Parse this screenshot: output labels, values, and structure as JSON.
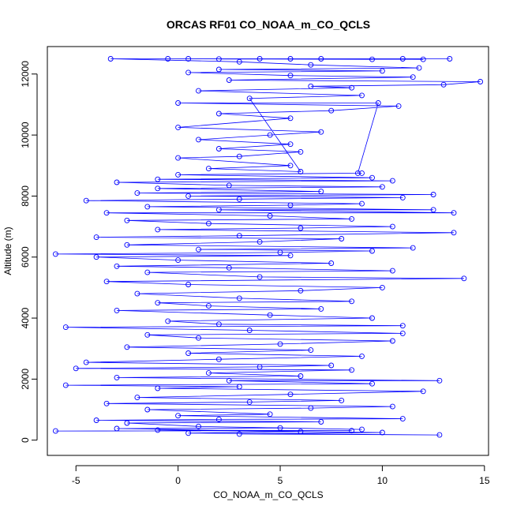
{
  "chart_data": {
    "type": "line",
    "title": "ORCAS RF01 CO_NOAA_m_CO_QCLS",
    "xlabel": "CO_NOAA_m_CO_QCLS",
    "ylabel": "Altitude (m)",
    "xlim": [
      -6.4,
      15.2
    ],
    "ylim": [
      -500,
      12900
    ],
    "x_ticks": [
      -5,
      0,
      5,
      10,
      15
    ],
    "y_ticks": [
      0,
      2000,
      4000,
      6000,
      8000,
      10000,
      12000
    ],
    "grid": false,
    "series": [
      {
        "color": "#0000ff",
        "marker": "open-circle",
        "points": [
          [
            -6.0,
            300
          ],
          [
            8.5,
            310
          ],
          [
            -1.0,
            330
          ],
          [
            10.0,
            250
          ],
          [
            3.0,
            200
          ],
          [
            12.8,
            170
          ],
          [
            0.5,
            230
          ],
          [
            6.0,
            280
          ],
          [
            -3.0,
            380
          ],
          [
            5.0,
            400
          ],
          [
            9.0,
            350
          ],
          [
            1.0,
            450
          ],
          [
            -2.5,
            560
          ],
          [
            7.0,
            600
          ],
          [
            -4.0,
            650
          ],
          [
            2.0,
            680
          ],
          [
            11.0,
            700
          ],
          [
            0.0,
            800
          ],
          [
            4.5,
            850
          ],
          [
            -1.5,
            1000
          ],
          [
            6.5,
            1050
          ],
          [
            10.5,
            1100
          ],
          [
            -3.5,
            1200
          ],
          [
            3.5,
            1250
          ],
          [
            8.0,
            1300
          ],
          [
            -2.0,
            1400
          ],
          [
            5.5,
            1500
          ],
          [
            12.0,
            1600
          ],
          [
            -1.0,
            1700
          ],
          [
            3.0,
            1750
          ],
          [
            -5.5,
            1800
          ],
          [
            9.5,
            1850
          ],
          [
            2.5,
            1950
          ],
          [
            12.8,
            1950
          ],
          [
            -3.0,
            2050
          ],
          [
            6.0,
            2100
          ],
          [
            1.5,
            2200
          ],
          [
            8.5,
            2300
          ],
          [
            -5.0,
            2350
          ],
          [
            4.0,
            2400
          ],
          [
            7.5,
            2450
          ],
          [
            -4.5,
            2550
          ],
          [
            2.0,
            2650
          ],
          [
            9.0,
            2750
          ],
          [
            0.5,
            2850
          ],
          [
            6.5,
            2950
          ],
          [
            -2.5,
            3050
          ],
          [
            5.0,
            3150
          ],
          [
            10.5,
            3250
          ],
          [
            1.0,
            3350
          ],
          [
            -1.5,
            3450
          ],
          [
            11.0,
            3500
          ],
          [
            3.5,
            3600
          ],
          [
            -5.5,
            3700
          ],
          [
            11.0,
            3750
          ],
          [
            2.0,
            3800
          ],
          [
            -0.5,
            3900
          ],
          [
            9.5,
            4000
          ],
          [
            4.5,
            4100
          ],
          [
            -3.0,
            4250
          ],
          [
            7.0,
            4300
          ],
          [
            1.5,
            4400
          ],
          [
            -1.0,
            4500
          ],
          [
            8.5,
            4550
          ],
          [
            3.0,
            4650
          ],
          [
            -2.0,
            4800
          ],
          [
            6.0,
            4900
          ],
          [
            10.0,
            5000
          ],
          [
            0.5,
            5100
          ],
          [
            -3.5,
            5200
          ],
          [
            14.0,
            5300
          ],
          [
            4.0,
            5350
          ],
          [
            -1.5,
            5500
          ],
          [
            10.5,
            5550
          ],
          [
            2.5,
            5650
          ],
          [
            -3.0,
            5700
          ],
          [
            7.5,
            5800
          ],
          [
            0.0,
            5900
          ],
          [
            -4.0,
            6000
          ],
          [
            5.5,
            6050
          ],
          [
            -6.0,
            6100
          ],
          [
            5.0,
            6150
          ],
          [
            9.5,
            6200
          ],
          [
            1.0,
            6250
          ],
          [
            11.5,
            6300
          ],
          [
            -2.5,
            6400
          ],
          [
            4.0,
            6500
          ],
          [
            8.0,
            6600
          ],
          [
            -4.0,
            6650
          ],
          [
            3.0,
            6700
          ],
          [
            13.5,
            6800
          ],
          [
            -1.0,
            6900
          ],
          [
            6.0,
            6950
          ],
          [
            10.5,
            7000
          ],
          [
            1.5,
            7100
          ],
          [
            -2.5,
            7200
          ],
          [
            8.5,
            7250
          ],
          [
            4.5,
            7350
          ],
          [
            -3.5,
            7450
          ],
          [
            13.5,
            7450
          ],
          [
            2.0,
            7550
          ],
          [
            12.5,
            7550
          ],
          [
            -1.5,
            7650
          ],
          [
            5.5,
            7700
          ],
          [
            9.0,
            7750
          ],
          [
            -4.5,
            7850
          ],
          [
            3.0,
            7900
          ],
          [
            11.0,
            7950
          ],
          [
            0.5,
            8000
          ],
          [
            12.5,
            8050
          ],
          [
            -2.0,
            8100
          ],
          [
            7.0,
            8150
          ],
          [
            -1.0,
            8250
          ],
          [
            10.0,
            8300
          ],
          [
            2.5,
            8350
          ],
          [
            -3.0,
            8450
          ],
          [
            10.5,
            8500
          ],
          [
            -1.0,
            8550
          ],
          [
            9.5,
            8600
          ],
          [
            0.0,
            8700
          ],
          [
            9.0,
            8750
          ],
          [
            8.8,
            8750
          ],
          [
            9.8,
            11050
          ],
          [
            0.0,
            11050
          ],
          [
            10.8,
            10950
          ],
          [
            7.5,
            10800
          ],
          [
            2.0,
            10700
          ],
          [
            5.5,
            10550
          ],
          [
            0.0,
            10250
          ],
          [
            7.0,
            10100
          ],
          [
            4.5,
            10000
          ],
          [
            1.0,
            9850
          ],
          [
            5.5,
            9700
          ],
          [
            2.0,
            9550
          ],
          [
            6.0,
            9450
          ],
          [
            3.0,
            9300
          ],
          [
            0.0,
            9250
          ],
          [
            5.5,
            9000
          ],
          [
            1.5,
            8900
          ],
          [
            6.0,
            8800
          ],
          [
            3.5,
            11200
          ],
          [
            9.0,
            11300
          ],
          [
            1.0,
            11450
          ],
          [
            8.5,
            11550
          ],
          [
            6.5,
            11600
          ],
          [
            13.0,
            11650
          ],
          [
            14.8,
            11750
          ],
          [
            2.5,
            11800
          ],
          [
            11.5,
            11900
          ],
          [
            5.5,
            11950
          ],
          [
            0.5,
            12050
          ],
          [
            10.0,
            12100
          ],
          [
            2.0,
            12150
          ],
          [
            11.8,
            12200
          ],
          [
            6.5,
            12300
          ],
          [
            3.0,
            12400
          ],
          [
            -3.3,
            12500
          ],
          [
            13.3,
            12500
          ],
          [
            -0.5,
            12500
          ],
          [
            12.0,
            12480
          ],
          [
            4.0,
            12500
          ],
          [
            9.5,
            12480
          ],
          [
            0.5,
            12500
          ],
          [
            7.0,
            12500
          ],
          [
            2.0,
            12490
          ],
          [
            11.0,
            12500
          ],
          [
            5.5,
            12500
          ]
        ]
      }
    ]
  }
}
